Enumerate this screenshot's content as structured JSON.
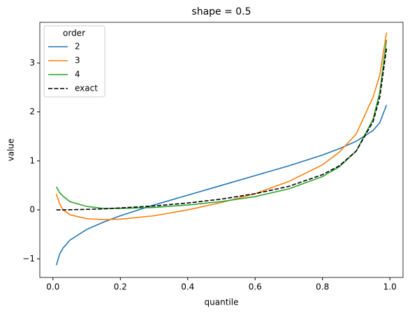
{
  "chart_data": {
    "type": "line",
    "title": "shape = 0.5",
    "xlabel": "quantile",
    "ylabel": "value",
    "x": [
      0.01,
      0.02,
      0.03,
      0.05,
      0.1,
      0.15,
      0.2,
      0.3,
      0.4,
      0.5,
      0.6,
      0.7,
      0.8,
      0.85,
      0.9,
      0.95,
      0.97,
      0.99
    ],
    "series": [
      {
        "name": "2",
        "color": "#1f77b4",
        "linestyle": "solid",
        "values": [
          -1.13,
          -0.9,
          -0.78,
          -0.62,
          -0.4,
          -0.25,
          -0.12,
          0.1,
          0.3,
          0.5,
          0.7,
          0.9,
          1.12,
          1.25,
          1.4,
          1.62,
          1.78,
          2.14
        ]
      },
      {
        "name": "3",
        "color": "#ff7f0e",
        "linestyle": "solid",
        "values": [
          0.33,
          0.12,
          0.0,
          -0.1,
          -0.18,
          -0.2,
          -0.19,
          -0.12,
          0.0,
          0.15,
          0.33,
          0.58,
          0.92,
          1.18,
          1.55,
          2.3,
          2.75,
          3.62
        ]
      },
      {
        "name": "4",
        "color": "#2ca02c",
        "linestyle": "solid",
        "values": [
          0.47,
          0.35,
          0.28,
          0.17,
          0.07,
          0.03,
          0.03,
          0.05,
          0.1,
          0.17,
          0.27,
          0.43,
          0.68,
          0.88,
          1.2,
          1.85,
          2.4,
          3.47
        ]
      },
      {
        "name": "exact",
        "color": "#000000",
        "linestyle": "dashed",
        "values": [
          0,
          0,
          0,
          0.003,
          0.01,
          0.02,
          0.04,
          0.08,
          0.14,
          0.22,
          0.33,
          0.48,
          0.72,
          0.9,
          1.2,
          1.8,
          2.3,
          3.3
        ]
      }
    ],
    "xlim": [
      -0.039,
      1.039
    ],
    "ylim": [
      -1.38,
      3.83
    ],
    "xticks": [
      {
        "value": 0,
        "label": "0.0"
      },
      0.2,
      0.4,
      0.6,
      0.8,
      {
        "value": 1,
        "label": "1.0"
      }
    ],
    "yticks": [
      {
        "value": -1,
        "label": "−1"
      },
      0,
      1,
      2,
      3
    ],
    "legend_title": "order",
    "legend_position": "upper-left",
    "grid": false
  }
}
